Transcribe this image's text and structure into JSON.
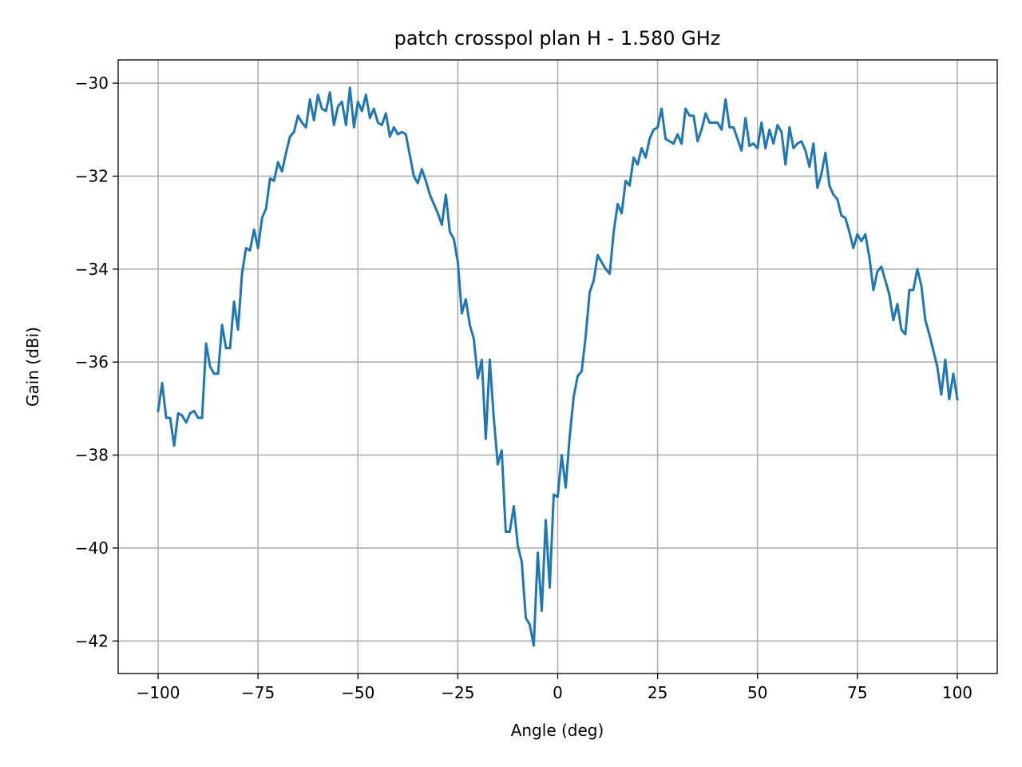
{
  "chart_data": {
    "type": "line",
    "title": "patch crosspol plan H - 1.580 GHz",
    "xlabel": "Angle (deg)",
    "ylabel": "Gain (dBi)",
    "xlim": [
      -110,
      110
    ],
    "ylim": [
      -42.7,
      -29.5
    ],
    "grid": true,
    "xticks": [
      -100,
      -75,
      -50,
      -25,
      0,
      25,
      50,
      75,
      100
    ],
    "xtick_labels": [
      "−100",
      "−75",
      "−50",
      "−25",
      "0",
      "25",
      "50",
      "75",
      "100"
    ],
    "yticks": [
      -30,
      -32,
      -34,
      -36,
      -38,
      -40,
      -42
    ],
    "ytick_labels": [
      "−30",
      "−32",
      "−34",
      "−36",
      "−38",
      "−40",
      "−42"
    ],
    "series": [
      {
        "color": "#1f77b4",
        "x": [
          -100,
          -99,
          -98,
          -97,
          -96,
          -95,
          -94,
          -93,
          -92,
          -91,
          -90,
          -89,
          -88,
          -87,
          -86,
          -85,
          -84,
          -83,
          -82,
          -81,
          -80,
          -79,
          -78,
          -77,
          -76,
          -75,
          -74,
          -73,
          -72,
          -71,
          -70,
          -69,
          -68,
          -67,
          -66,
          -65,
          -64,
          -63,
          -62,
          -61,
          -60,
          -59,
          -58,
          -57,
          -56,
          -55,
          -54,
          -53,
          -52,
          -51,
          -50,
          -49,
          -48,
          -47,
          -46,
          -45,
          -44,
          -43,
          -42,
          -41,
          -40,
          -39,
          -38,
          -37,
          -36,
          -35,
          -34,
          -33,
          -32,
          -31,
          -30,
          -29,
          -28,
          -27,
          -26,
          -25,
          -24,
          -23,
          -22,
          -21,
          -20,
          -19,
          -18,
          -17,
          -16,
          -15,
          -14,
          -13,
          -12,
          -11,
          -10,
          -9,
          -8,
          -7,
          -6,
          -5,
          -4,
          -3,
          -2,
          -1,
          0,
          1,
          2,
          3,
          4,
          5,
          6,
          7,
          8,
          9,
          10,
          11,
          12,
          13,
          14,
          15,
          16,
          17,
          18,
          19,
          20,
          21,
          22,
          23,
          24,
          25,
          26,
          27,
          28,
          29,
          30,
          31,
          32,
          33,
          34,
          35,
          36,
          37,
          38,
          39,
          40,
          41,
          42,
          43,
          44,
          45,
          46,
          47,
          48,
          49,
          50,
          51,
          52,
          53,
          54,
          55,
          56,
          57,
          58,
          59,
          60,
          61,
          62,
          63,
          64,
          65,
          66,
          67,
          68,
          69,
          70,
          71,
          72,
          73,
          74,
          75,
          76,
          77,
          78,
          79,
          80,
          81,
          82,
          83,
          84,
          85,
          86,
          87,
          88,
          89,
          90,
          91,
          92,
          93,
          94,
          95,
          96,
          97,
          98,
          99,
          100
        ],
        "y": [
          -37.05,
          -36.45,
          -37.2,
          -37.2,
          -37.8,
          -37.1,
          -37.15,
          -37.3,
          -37.1,
          -37.05,
          -37.2,
          -37.2,
          -35.6,
          -36.1,
          -36.25,
          -36.25,
          -35.2,
          -35.7,
          -35.7,
          -34.7,
          -35.3,
          -34.1,
          -33.55,
          -33.6,
          -33.15,
          -33.55,
          -32.9,
          -32.7,
          -32.05,
          -32.1,
          -31.7,
          -31.9,
          -31.5,
          -31.15,
          -31.05,
          -30.7,
          -30.85,
          -30.95,
          -30.35,
          -30.8,
          -30.25,
          -30.55,
          -30.6,
          -30.2,
          -30.9,
          -30.5,
          -30.4,
          -30.9,
          -30.1,
          -30.95,
          -30.4,
          -30.6,
          -30.25,
          -30.75,
          -30.55,
          -30.85,
          -30.9,
          -30.65,
          -31.15,
          -30.95,
          -31.1,
          -31.05,
          -31.1,
          -31.55,
          -32.0,
          -32.15,
          -31.85,
          -32.1,
          -32.4,
          -32.6,
          -32.8,
          -33.05,
          -32.4,
          -33.2,
          -33.35,
          -33.85,
          -34.95,
          -34.65,
          -35.2,
          -35.5,
          -36.35,
          -35.95,
          -37.65,
          -35.95,
          -37.2,
          -38.2,
          -37.9,
          -39.65,
          -39.65,
          -39.1,
          -39.95,
          -40.3,
          -41.5,
          -41.65,
          -42.1,
          -40.1,
          -41.35,
          -39.4,
          -40.85,
          -38.85,
          -38.9,
          -38.0,
          -38.7,
          -37.6,
          -36.75,
          -36.3,
          -36.2,
          -35.45,
          -34.5,
          -34.25,
          -33.7,
          -33.85,
          -34.0,
          -34.1,
          -33.2,
          -32.6,
          -32.8,
          -32.1,
          -32.2,
          -31.6,
          -31.75,
          -31.4,
          -31.6,
          -31.2,
          -31.0,
          -30.95,
          -30.55,
          -31.2,
          -31.25,
          -31.3,
          -31.1,
          -31.3,
          -30.55,
          -30.7,
          -30.7,
          -31.25,
          -31.0,
          -30.65,
          -30.85,
          -30.85,
          -30.85,
          -31.0,
          -30.35,
          -30.95,
          -30.95,
          -31.2,
          -31.45,
          -30.75,
          -31.35,
          -31.3,
          -31.4,
          -30.85,
          -31.4,
          -31.0,
          -31.3,
          -30.9,
          -31.05,
          -31.75,
          -30.95,
          -31.4,
          -31.3,
          -31.25,
          -31.45,
          -31.8,
          -31.3,
          -32.25,
          -31.95,
          -31.5,
          -32.2,
          -32.4,
          -32.5,
          -32.85,
          -32.9,
          -33.2,
          -33.55,
          -33.25,
          -33.4,
          -33.25,
          -33.75,
          -34.45,
          -34.05,
          -33.95,
          -34.25,
          -34.55,
          -35.1,
          -34.75,
          -35.3,
          -35.4,
          -34.45,
          -34.45,
          -34.0,
          -34.35,
          -35.1,
          -35.4,
          -35.75,
          -36.1,
          -36.7,
          -35.95,
          -36.8,
          -36.25,
          -36.8
        ]
      }
    ]
  }
}
